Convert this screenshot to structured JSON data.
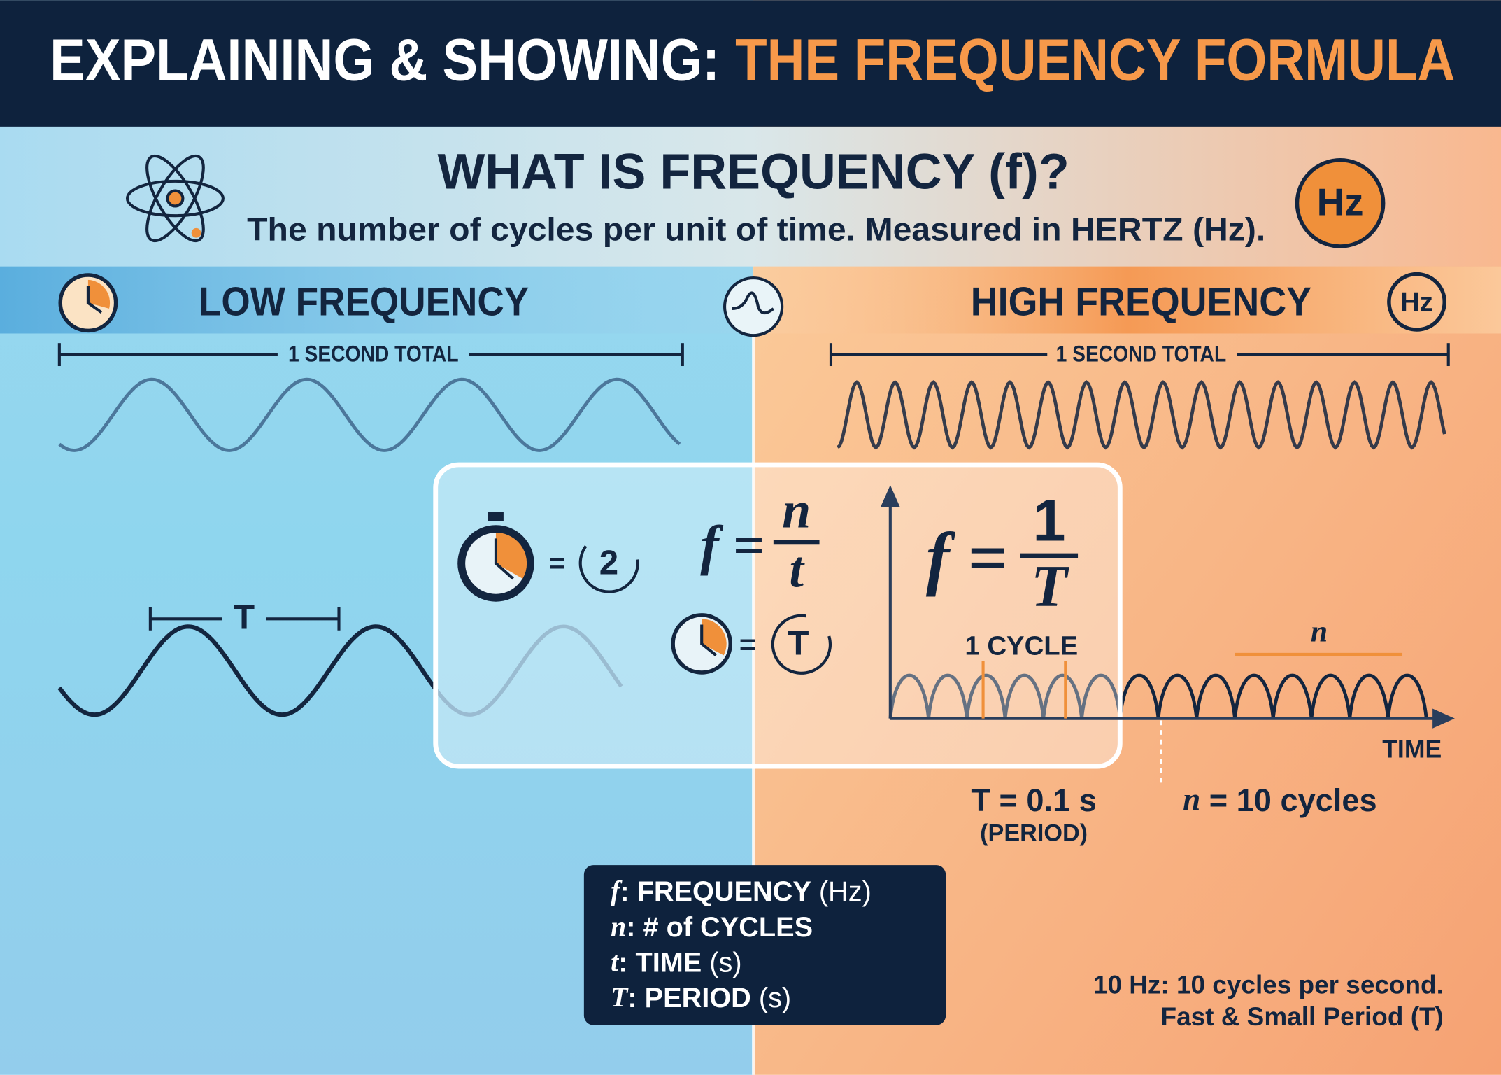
{
  "header": {
    "title_lead": "EXPLAINING & SHOWING:",
    "title_highlight": "THE FREQUENCY FORMULA"
  },
  "intro": {
    "heading": "WHAT IS FREQUENCY (f)?",
    "definition": "The number of cycles per unit of time. Measured in HERTZ (Hz).",
    "badge": "Hz"
  },
  "low_frequency": {
    "title": "LOW FREQUENCY",
    "span_label": "1 SECOND TOTAL",
    "period_label": "T"
  },
  "high_frequency": {
    "title": "HIGH FREQUENCY",
    "badge": "Hz",
    "span_label": "1 SECOND TOTAL"
  },
  "formula_box": {
    "stopwatch_equation": {
      "equals": "=",
      "cycles": "2"
    },
    "clock_equation": {
      "equals": "=",
      "period": "T"
    },
    "formula_n_over_t": {
      "lhs": "f =",
      "numerator": "n",
      "denominator": "t"
    },
    "formula_one_over_T": {
      "lhs": "f =",
      "numerator": "1",
      "denominator": "T"
    }
  },
  "graph": {
    "cycle_label": "1 CYCLE",
    "n_label": "n",
    "axis_label": "TIME",
    "period": "T = 0.1 s",
    "period_note": "(PERIOD)",
    "count_symbol": "n",
    "count_text": "= 10 cycles"
  },
  "legend": {
    "rows": [
      {
        "symbol": "f",
        "text": ": FREQUENCY",
        "unit": "(Hz)"
      },
      {
        "symbol": "n",
        "text": ": # of CYCLES",
        "unit": ""
      },
      {
        "symbol": "t",
        "text": ": TIME",
        "unit": "(s)"
      },
      {
        "symbol": "T",
        "text": ": PERIOD",
        "unit": "(s)"
      }
    ]
  },
  "note": {
    "line1": "10 Hz: 10 cycles per second.",
    "line2": "Fast & Small Period (T)"
  }
}
